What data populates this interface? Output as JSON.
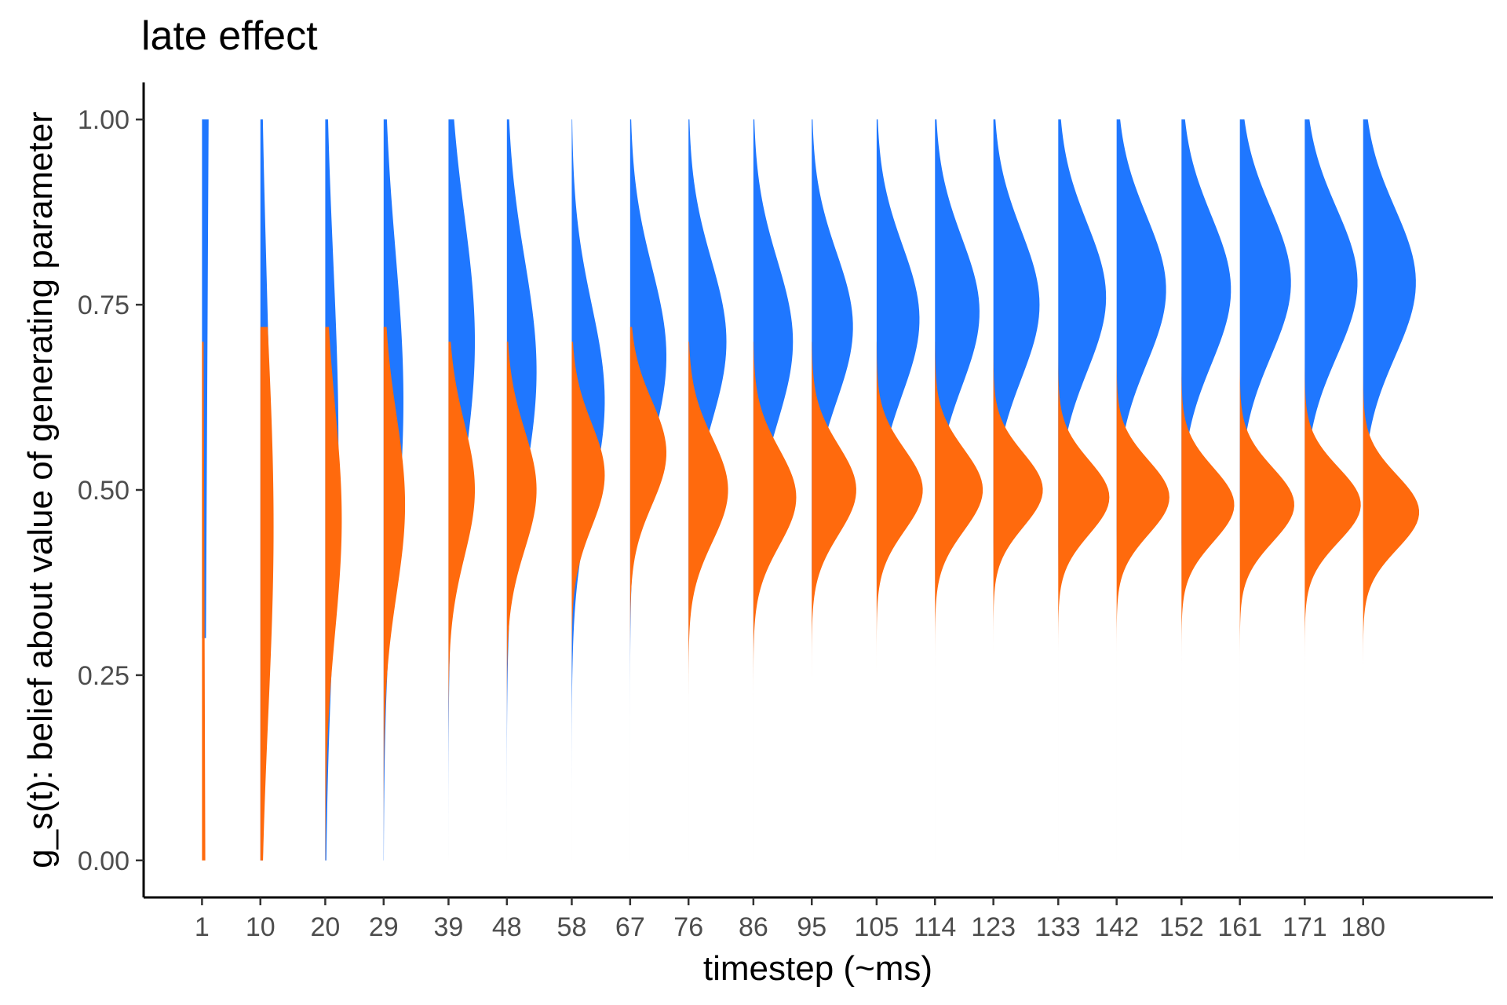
{
  "chart_data": {
    "type": "area",
    "title": "late effect",
    "xlabel": "timestep (~ms)",
    "ylabel": "g_s(t): belief about value of generating parameter",
    "ylim": [
      -0.05,
      1.05
    ],
    "yticks": [
      "0.00",
      "0.25",
      "0.50",
      "0.75",
      "1.00"
    ],
    "ytick_values": [
      0,
      0.25,
      0.5,
      0.75,
      1
    ],
    "categories": [
      "1",
      "10",
      "20",
      "29",
      "39",
      "48",
      "58",
      "67",
      "76",
      "86",
      "95",
      "105",
      "114",
      "123",
      "133",
      "142",
      "152",
      "161",
      "171",
      "180"
    ],
    "x_values": [
      1,
      10,
      20,
      29,
      39,
      48,
      58,
      67,
      76,
      86,
      95,
      105,
      114,
      123,
      133,
      142,
      152,
      161,
      171,
      180
    ],
    "xlim": [
      -8,
      200
    ],
    "grid": false,
    "legend": "none",
    "series": [
      {
        "color": "#1f77ff",
        "distributions": [
          {
            "mean": 0.65,
            "sd": 0.35,
            "peak": 2,
            "trunc": [
              0.3,
              1.0
            ],
            "mode": "uniform"
          },
          {
            "mean": 0.5,
            "sd": 0.3,
            "peak": 3,
            "trunc": [
              0.0,
              1.0
            ]
          },
          {
            "mean": 0.56,
            "sd": 0.25,
            "peak": 4,
            "trunc": [
              0.0,
              1.0
            ]
          },
          {
            "mean": 0.62,
            "sd": 0.2,
            "peak": 6,
            "trunc": [
              0.0,
              1.0
            ]
          },
          {
            "mean": 0.7,
            "sd": 0.17,
            "peak": 8,
            "trunc": [
              0.0,
              1.0
            ]
          },
          {
            "mean": 0.66,
            "sd": 0.15,
            "peak": 9,
            "trunc": [
              0.0,
              1.0
            ]
          },
          {
            "mean": 0.62,
            "sd": 0.13,
            "peak": 10,
            "trunc": [
              0.0,
              1.0
            ]
          },
          {
            "mean": 0.68,
            "sd": 0.12,
            "peak": 11,
            "trunc": [
              0.0,
              1.0
            ]
          },
          {
            "mean": 0.7,
            "sd": 0.11,
            "peak": 11.5,
            "trunc": [
              0.0,
              1.0
            ]
          },
          {
            "mean": 0.7,
            "sd": 0.11,
            "peak": 12,
            "trunc": [
              0.0,
              1.0
            ]
          },
          {
            "mean": 0.72,
            "sd": 0.1,
            "peak": 12.5,
            "trunc": [
              0.0,
              1.0
            ]
          },
          {
            "mean": 0.73,
            "sd": 0.1,
            "peak": 13,
            "trunc": [
              0.0,
              1.0
            ]
          },
          {
            "mean": 0.74,
            "sd": 0.1,
            "peak": 13.5,
            "trunc": [
              0.0,
              1.0
            ]
          },
          {
            "mean": 0.75,
            "sd": 0.1,
            "peak": 14,
            "trunc": [
              0.0,
              1.0
            ]
          },
          {
            "mean": 0.76,
            "sd": 0.1,
            "peak": 14.5,
            "trunc": [
              0.0,
              1.0
            ]
          },
          {
            "mean": 0.77,
            "sd": 0.1,
            "peak": 15,
            "trunc": [
              0.0,
              1.0
            ]
          },
          {
            "mean": 0.77,
            "sd": 0.1,
            "peak": 15,
            "trunc": [
              0.0,
              1.0
            ]
          },
          {
            "mean": 0.78,
            "sd": 0.1,
            "peak": 15.5,
            "trunc": [
              0.0,
              1.0
            ]
          },
          {
            "mean": 0.78,
            "sd": 0.1,
            "peak": 16,
            "trunc": [
              0.0,
              1.0
            ]
          },
          {
            "mean": 0.78,
            "sd": 0.1,
            "peak": 16,
            "trunc": [
              0.0,
              1.0
            ]
          }
        ]
      },
      {
        "color": "#ff6a0d",
        "distributions": [
          {
            "mean": 0.35,
            "sd": 0.35,
            "peak": 1,
            "trunc": [
              0.0,
              0.7
            ],
            "mode": "uniform"
          },
          {
            "mean": 0.45,
            "sd": 0.25,
            "peak": 4,
            "trunc": [
              0.0,
              0.72
            ]
          },
          {
            "mean": 0.46,
            "sd": 0.15,
            "peak": 5,
            "trunc": [
              0.0,
              0.72
            ]
          },
          {
            "mean": 0.48,
            "sd": 0.12,
            "peak": 6.5,
            "trunc": [
              0.0,
              0.72
            ]
          },
          {
            "mean": 0.5,
            "sd": 0.09,
            "peak": 8,
            "trunc": [
              0.0,
              0.7
            ]
          },
          {
            "mean": 0.5,
            "sd": 0.08,
            "peak": 9,
            "trunc": [
              0.0,
              0.7
            ]
          },
          {
            "mean": 0.52,
            "sd": 0.07,
            "peak": 10,
            "trunc": [
              0.0,
              0.7
            ]
          },
          {
            "mean": 0.55,
            "sd": 0.07,
            "peak": 11,
            "trunc": [
              0.0,
              0.72
            ]
          },
          {
            "mean": 0.5,
            "sd": 0.07,
            "peak": 12,
            "trunc": [
              0.0,
              0.7
            ]
          },
          {
            "mean": 0.49,
            "sd": 0.065,
            "peak": 13,
            "trunc": [
              0.0,
              0.7
            ]
          },
          {
            "mean": 0.5,
            "sd": 0.06,
            "peak": 13.5,
            "trunc": [
              0.0,
              0.7
            ]
          },
          {
            "mean": 0.5,
            "sd": 0.055,
            "peak": 14,
            "trunc": [
              0.0,
              0.7
            ]
          },
          {
            "mean": 0.5,
            "sd": 0.055,
            "peak": 14.5,
            "trunc": [
              0.0,
              0.7
            ]
          },
          {
            "mean": 0.5,
            "sd": 0.05,
            "peak": 15,
            "trunc": [
              0.0,
              0.7
            ]
          },
          {
            "mean": 0.49,
            "sd": 0.05,
            "peak": 15.5,
            "trunc": [
              0.0,
              0.7
            ]
          },
          {
            "mean": 0.49,
            "sd": 0.05,
            "peak": 16,
            "trunc": [
              0.0,
              0.7
            ]
          },
          {
            "mean": 0.48,
            "sd": 0.05,
            "peak": 16,
            "trunc": [
              0.0,
              0.7
            ]
          },
          {
            "mean": 0.48,
            "sd": 0.05,
            "peak": 16.5,
            "trunc": [
              0.0,
              0.7
            ]
          },
          {
            "mean": 0.48,
            "sd": 0.05,
            "peak": 17,
            "trunc": [
              0.0,
              0.7
            ]
          },
          {
            "mean": 0.47,
            "sd": 0.05,
            "peak": 17,
            "trunc": [
              0.0,
              0.7
            ]
          }
        ]
      }
    ]
  }
}
